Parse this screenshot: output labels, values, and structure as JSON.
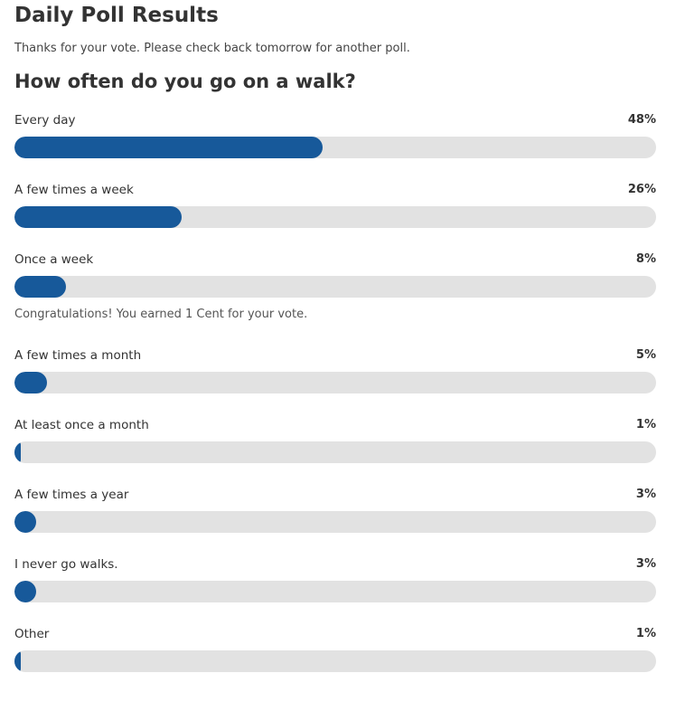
{
  "header": {
    "title": "Daily Poll Results",
    "subtitle": "Thanks for your vote. Please check back tomorrow for another poll."
  },
  "poll": {
    "question": "How often do you go on a walk?",
    "accent_color": "#17599a",
    "track_color": "#e2e2e2",
    "options": [
      {
        "label": "Every day",
        "percent_text": "48%",
        "percent": 48
      },
      {
        "label": "A few times a week",
        "percent_text": "26%",
        "percent": 26
      },
      {
        "label": "Once a week",
        "percent_text": "8%",
        "percent": 8
      },
      {
        "label": "A few times a month",
        "percent_text": "5%",
        "percent": 5
      },
      {
        "label": "At least once a month",
        "percent_text": "1%",
        "percent": 1
      },
      {
        "label": "A few times a year",
        "percent_text": "3%",
        "percent": 3
      },
      {
        "label": "I never go walks.",
        "percent_text": "3%",
        "percent": 3
      },
      {
        "label": "Other",
        "percent_text": "1%",
        "percent": 1
      }
    ],
    "reward_notice": "Congratulations! You earned 1 Cent for your vote."
  }
}
